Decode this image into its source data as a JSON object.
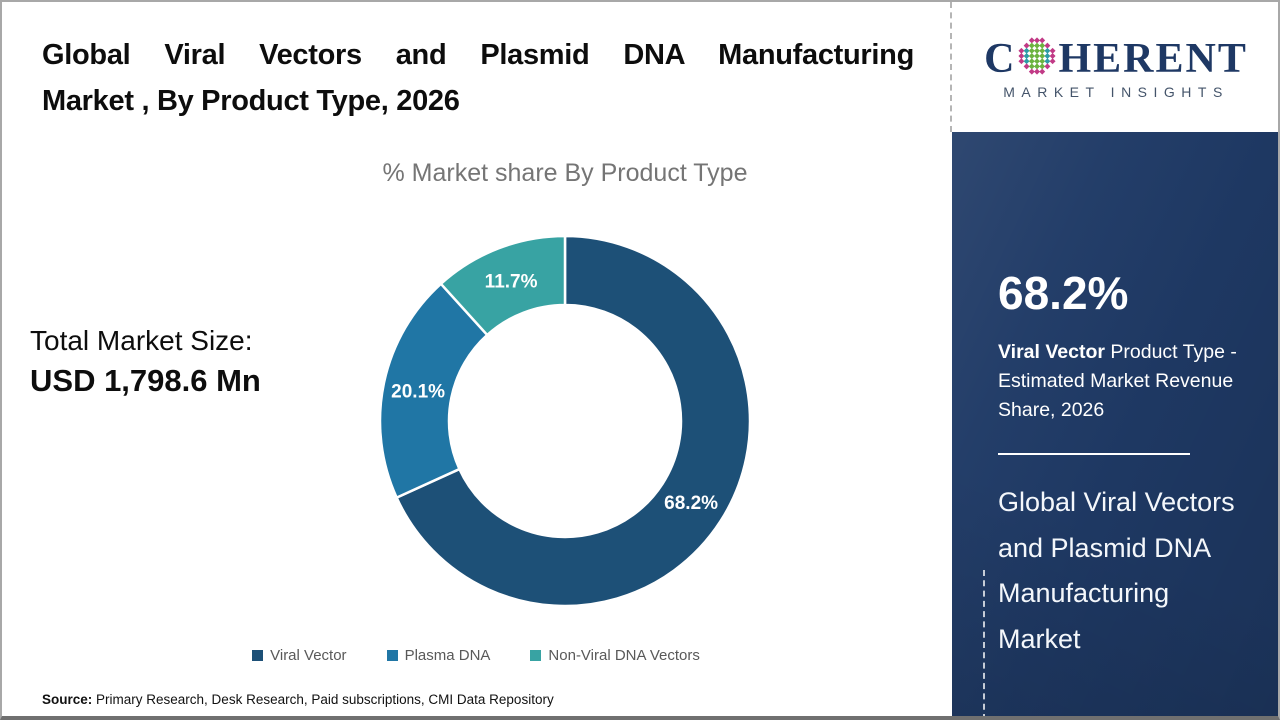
{
  "header": {
    "title_line1": "Global Viral Vectors and Plasmid DNA Manufacturing",
    "title_line2": "Market , By Product Type, 2026"
  },
  "logo": {
    "letter_c": "C",
    "word_rest": "HERENT",
    "subtitle": "MARKET INSIGHTS",
    "text_color": "#1e3864",
    "dot_colors": {
      "outer": "#c13a86",
      "inner_green": "#6cb33f",
      "inner_teal": "#2d9ca6"
    }
  },
  "chart_data": {
    "type": "pie",
    "donut": true,
    "title": "% Market share By Product Type",
    "categories": [
      "Viral Vector",
      "Plasma DNA",
      "Non-Viral DNA Vectors"
    ],
    "values": [
      68.2,
      20.1,
      11.7
    ],
    "value_labels": [
      "68.2%",
      "20.1%",
      "11.7%"
    ],
    "colors": [
      "#1d5077",
      "#2076a5",
      "#38a3a3"
    ],
    "start_angle_deg": 0,
    "direction": "clockwise",
    "legend_position": "bottom"
  },
  "total_market": {
    "label": "Total Market Size:",
    "value": "USD 1,798.6 Mn"
  },
  "sidebar": {
    "background": "#1f3a66",
    "highlight_value": "68.2%",
    "highlight_bold": "Viral Vector",
    "highlight_rest": "Product Type - Estimated Market Revenue Share, 2026",
    "market_name": "Global Viral Vectors and Plasmid DNA Manufacturing Market"
  },
  "source": {
    "label": "Source:",
    "text": "Primary Research, Desk Research, Paid subscriptions, CMI Data Repository"
  }
}
